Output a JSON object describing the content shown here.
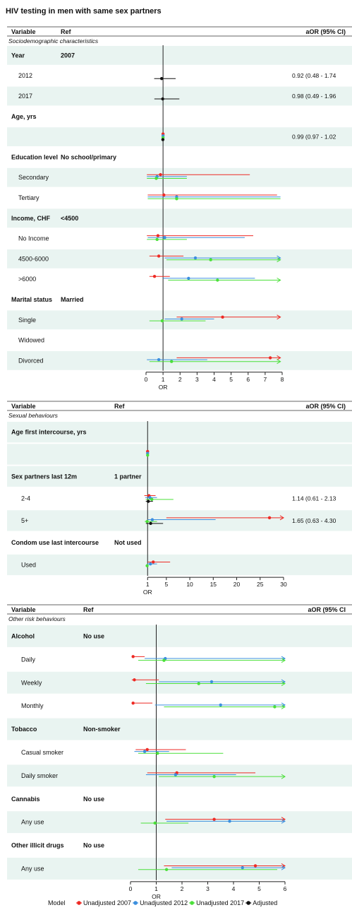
{
  "title": "HIV testing in men with same sex partners",
  "colors": {
    "unadj2007": "#ee2a24",
    "unadj2012": "#3b8fde",
    "unadj2017": "#4be03a",
    "adjusted": "#111111",
    "row_shade": "#e9f4f1"
  },
  "legend": {
    "title": "Model",
    "entries": [
      "Unadjusted 2007",
      "Unadjusted 2012",
      "Unadjusted 2017",
      "Adjusted"
    ]
  },
  "chart_data": [
    {
      "type": "forest",
      "headers": {
        "variable": "Variable",
        "ref": "Ref",
        "aor": "aOR (95% CI)"
      },
      "section_label": "Sociodemographic characteristics",
      "xlabel": "OR",
      "xlim": [
        0,
        8
      ],
      "xticks": [
        0,
        1,
        2,
        3,
        4,
        5,
        6,
        7,
        8
      ],
      "null_line": 1,
      "rows": [
        {
          "variable": "Year",
          "ref": "2007",
          "heading": true,
          "shade": true
        },
        {
          "variable": "2012",
          "aor": "0.92 (0.48 - 1.74",
          "est": [
            {
              "model": "adjusted",
              "or": 0.92,
              "lo": 0.48,
              "hi": 1.74
            }
          ]
        },
        {
          "variable": "2017",
          "aor": "0.98 (0.49 - 1.96",
          "shade": true,
          "est": [
            {
              "model": "adjusted",
              "or": 0.98,
              "lo": 0.49,
              "hi": 1.96
            }
          ]
        },
        {
          "variable": "Age, yrs",
          "heading": true
        },
        {
          "variable": "",
          "aor": "0.99 (0.97 - 1.02",
          "shade": true,
          "est": [
            {
              "model": "unadj2007",
              "or": 1.0,
              "lo": 0.98,
              "hi": 1.02
            },
            {
              "model": "unadj2012",
              "or": 1.0,
              "lo": 0.98,
              "hi": 1.02
            },
            {
              "model": "unadj2017",
              "or": 1.0,
              "lo": 0.98,
              "hi": 1.02
            },
            {
              "model": "adjusted",
              "or": 0.99,
              "lo": 0.97,
              "hi": 1.02
            }
          ]
        },
        {
          "variable": "Education level",
          "ref": "No school/primary",
          "heading": true
        },
        {
          "variable": "Secondary",
          "shade": true,
          "est": [
            {
              "model": "unadj2007",
              "or": 0.85,
              "lo": 0.05,
              "hi": 6.1
            },
            {
              "model": "unadj2012",
              "or": 0.65,
              "lo": 0.05,
              "hi": 2.4
            },
            {
              "model": "unadj2017",
              "or": 0.6,
              "lo": 0.05,
              "hi": 2.4
            }
          ]
        },
        {
          "variable": "Tertiary",
          "est": [
            {
              "model": "unadj2007",
              "or": 1.05,
              "lo": 0.1,
              "hi": 7.7
            },
            {
              "model": "unadj2012",
              "or": 1.8,
              "lo": 0.1,
              "hi": 7.9
            },
            {
              "model": "unadj2017",
              "or": 1.8,
              "lo": 0.1,
              "hi": 7.9
            }
          ]
        },
        {
          "variable": "Income, CHF",
          "ref": "<4500",
          "heading": true,
          "shade": true
        },
        {
          "variable": "No Income",
          "est": [
            {
              "model": "unadj2007",
              "or": 0.7,
              "lo": 0.05,
              "hi": 6.3
            },
            {
              "model": "unadj2012",
              "or": 1.1,
              "lo": 0.1,
              "hi": 5.8
            },
            {
              "model": "unadj2017",
              "or": 0.65,
              "lo": 0.05,
              "hi": 2.4
            }
          ]
        },
        {
          "variable": "4500-6000",
          "shade": true,
          "est": [
            {
              "model": "unadj2007",
              "or": 0.75,
              "lo": 0.2,
              "hi": 2.2
            },
            {
              "model": "unadj2012",
              "or": 2.9,
              "lo": 1.1,
              "hi": 7.9,
              "arrow": true
            },
            {
              "model": "unadj2017",
              "or": 3.8,
              "lo": 1.2,
              "hi": 7.9,
              "arrow": true
            }
          ]
        },
        {
          "variable": ">6000",
          "est": [
            {
              "model": "unadj2007",
              "or": 0.5,
              "lo": 0.2,
              "hi": 1.4
            },
            {
              "model": "unadj2012",
              "or": 2.5,
              "lo": 1.0,
              "hi": 6.4
            },
            {
              "model": "unadj2017",
              "or": 4.2,
              "lo": 1.3,
              "hi": 7.9,
              "arrow": true
            }
          ]
        },
        {
          "variable": "Marital status",
          "ref": "Married",
          "heading": true
        },
        {
          "variable": "Single",
          "shade": true,
          "est": [
            {
              "model": "unadj2007",
              "or": 4.5,
              "lo": 1.8,
              "hi": 7.9,
              "arrow": true
            },
            {
              "model": "unadj2012",
              "or": 2.1,
              "lo": 1.1,
              "hi": 4.0
            },
            {
              "model": "unadj2017",
              "or": 0.95,
              "lo": 0.2,
              "hi": 3.5
            }
          ]
        },
        {
          "variable": "Widowed",
          "est": []
        },
        {
          "variable": "Divorced",
          "shade": true,
          "est": [
            {
              "model": "unadj2007",
              "or": 7.3,
              "lo": 1.8,
              "hi": 7.9,
              "arrow": true
            },
            {
              "model": "unadj2012",
              "or": 0.75,
              "lo": 0.05,
              "hi": 3.6
            },
            {
              "model": "unadj2017",
              "or": 1.5,
              "lo": 0.2,
              "hi": 7.9,
              "arrow": true
            }
          ]
        }
      ]
    },
    {
      "type": "forest",
      "headers": {
        "variable": "Variable",
        "ref": "Ref",
        "aor": "aOR (95% CI)"
      },
      "section_label": "Sexual behaviours",
      "xlabel": "OR",
      "xlim": [
        0,
        30
      ],
      "xticks": [
        1,
        5,
        10,
        15,
        20,
        25,
        30
      ],
      "null_line": 1,
      "rows": [
        {
          "variable": "Age first intercourse, yrs",
          "heading": true,
          "shade": true
        },
        {
          "variable": "",
          "shade": true,
          "est": [
            {
              "model": "unadj2007",
              "or": 1.0,
              "lo": 0.98,
              "hi": 1.02
            },
            {
              "model": "unadj2012",
              "or": 1.0,
              "lo": 0.98,
              "hi": 1.02
            },
            {
              "model": "unadj2017",
              "or": 1.0,
              "lo": 0.98,
              "hi": 1.02
            }
          ]
        },
        {
          "variable": "Sex partners last 12m",
          "ref": "1 partner",
          "heading": true,
          "shade": true
        },
        {
          "variable": "2-4",
          "aor": "1.14 (0.61 - 2.13",
          "est": [
            {
              "model": "unadj2007",
              "or": 1.3,
              "lo": 0.3,
              "hi": 2.7
            },
            {
              "model": "unadj2012",
              "or": 1.5,
              "lo": 0.5,
              "hi": 3.0
            },
            {
              "model": "unadj2017",
              "or": 1.9,
              "lo": 0.6,
              "hi": 6.5
            },
            {
              "model": "adjusted",
              "or": 1.14,
              "lo": 0.61,
              "hi": 2.13
            }
          ]
        },
        {
          "variable": "5+",
          "aor": "1.65 (0.63 - 4.30",
          "shade": true,
          "est": [
            {
              "model": "unadj2007",
              "or": 27,
              "lo": 5.0,
              "hi": 30,
              "arrow": true
            },
            {
              "model": "unadj2012",
              "or": 2.0,
              "lo": 1.0,
              "hi": 15.5
            },
            {
              "model": "unadj2017",
              "or": 0.9,
              "lo": 0.4,
              "hi": 3.0
            },
            {
              "model": "adjusted",
              "or": 1.65,
              "lo": 0.63,
              "hi": 4.3
            }
          ]
        },
        {
          "variable": "Condom use last intercourse",
          "ref": "Not used",
          "heading": true
        },
        {
          "variable": "Used",
          "shade": true,
          "est": [
            {
              "model": "unadj2007",
              "or": 2.2,
              "lo": 1.0,
              "hi": 5.8
            },
            {
              "model": "unadj2012",
              "or": 1.6,
              "lo": 0.9,
              "hi": 3.0
            },
            {
              "model": "unadj2017",
              "or": 0.9,
              "lo": 0.7,
              "hi": 1.2
            }
          ]
        }
      ]
    },
    {
      "type": "forest",
      "headers": {
        "variable": "Variable",
        "ref": "Ref",
        "aor": "aOR (95% CI"
      },
      "section_label": "Other risk behaviours",
      "xlabel": "OR",
      "xlim": [
        0,
        6
      ],
      "xticks": [
        0,
        1,
        2,
        3,
        4,
        5,
        6
      ],
      "null_line": 1,
      "rows": [
        {
          "variable": "Alcohol",
          "ref": "No use",
          "heading": true,
          "shade": true
        },
        {
          "variable": "Daily",
          "est": [
            {
              "model": "unadj2007",
              "or": 0.1,
              "lo": 0.05,
              "hi": 0.55
            },
            {
              "model": "unadj2012",
              "or": 1.35,
              "lo": 0.55,
              "hi": 6,
              "arrow": true
            },
            {
              "model": "unadj2017",
              "or": 1.3,
              "lo": 0.3,
              "hi": 6,
              "arrow": true
            }
          ]
        },
        {
          "variable": "Weekly",
          "shade": true,
          "est": [
            {
              "model": "unadj2007",
              "or": 0.15,
              "lo": 0.05,
              "hi": 1.1
            },
            {
              "model": "unadj2012",
              "or": 3.15,
              "lo": 1.1,
              "hi": 6,
              "arrow": true
            },
            {
              "model": "unadj2017",
              "or": 2.65,
              "lo": 0.6,
              "hi": 6,
              "arrow": true
            }
          ]
        },
        {
          "variable": "Monthly",
          "est": [
            {
              "model": "unadj2007",
              "or": 0.1,
              "lo": 0.05,
              "hi": 0.85
            },
            {
              "model": "unadj2012",
              "or": 3.5,
              "lo": 0.95,
              "hi": 6,
              "arrow": true
            },
            {
              "model": "unadj2017",
              "or": 5.6,
              "lo": 1.3,
              "hi": 6,
              "arrow": true
            }
          ]
        },
        {
          "variable": "Tobacco",
          "ref": "Non-smoker",
          "heading": true,
          "shade": true
        },
        {
          "variable": "Casual smoker",
          "est": [
            {
              "model": "unadj2007",
              "or": 0.65,
              "lo": 0.2,
              "hi": 2.15
            },
            {
              "model": "unadj2012",
              "or": 0.55,
              "lo": 0.15,
              "hi": 1.5
            },
            {
              "model": "unadj2017",
              "or": 1.05,
              "lo": 0.3,
              "hi": 3.6
            }
          ]
        },
        {
          "variable": "Daily smoker",
          "shade": true,
          "est": [
            {
              "model": "unadj2007",
              "or": 1.8,
              "lo": 0.65,
              "hi": 4.85
            },
            {
              "model": "unadj2012",
              "or": 1.75,
              "lo": 0.6,
              "hi": 4.1
            },
            {
              "model": "unadj2017",
              "or": 3.25,
              "lo": 1.1,
              "hi": 6,
              "arrow": true
            }
          ]
        },
        {
          "variable": "Cannabis",
          "ref": "No use",
          "heading": true
        },
        {
          "variable": "Any use",
          "shade": true,
          "est": [
            {
              "model": "unadj2007",
              "or": 3.25,
              "lo": 1.35,
              "hi": 6,
              "arrow": true
            },
            {
              "model": "unadj2012",
              "or": 3.85,
              "lo": 1.4,
              "hi": 6,
              "arrow": true
            },
            {
              "model": "unadj2017",
              "or": 0.95,
              "lo": 0.4,
              "hi": 2.25
            }
          ]
        },
        {
          "variable": "Other illicit drugs",
          "ref": "No use",
          "heading": true
        },
        {
          "variable": "Any use",
          "shade": true,
          "est": [
            {
              "model": "unadj2007",
              "or": 4.85,
              "lo": 1.3,
              "hi": 6,
              "arrow": true
            },
            {
              "model": "unadj2012",
              "or": 4.35,
              "lo": 1.6,
              "hi": 6,
              "arrow": true
            },
            {
              "model": "unadj2017",
              "or": 1.4,
              "lo": 0.3,
              "hi": 5.7
            }
          ]
        }
      ]
    }
  ]
}
